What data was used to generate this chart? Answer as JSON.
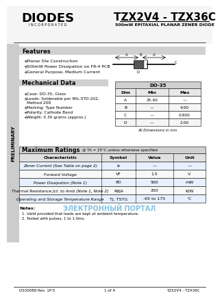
{
  "bg_color": "#f0f0f0",
  "page_bg": "#ffffff",
  "title": "TZX2V4 - TZX36C",
  "subtitle": "500mW EPITAXIAL PLANAR ZENER DIODE",
  "logo_text": "DIODES",
  "logo_sub": "INCORPORATED",
  "preliminary_text": "PRELIMINARY",
  "features_title": "Features",
  "features": [
    "Planar Die Construction",
    "500mW Power Dissipation on FR-4 PCB",
    "General Purpose, Medium Current"
  ],
  "mech_title": "Mechanical Data",
  "mech_items": [
    "Case: DO-35, Glass",
    "Leads: Solderable per MIL-STD-202,\n    Method 208",
    "Marking: Type Number",
    "Polarity: Cathode Band",
    "Weight: 0.30 grams (approx.)"
  ],
  "table_header": "DO-35",
  "table_cols": [
    "Dim",
    "Min",
    "Max"
  ],
  "table_rows": [
    [
      "A",
      "25.40",
      "—"
    ],
    [
      "B",
      "—",
      "4.00"
    ],
    [
      "C",
      "—",
      "0.800"
    ],
    [
      "D",
      "—",
      "2.00"
    ]
  ],
  "table_note": "All Dimensions in mm",
  "max_ratings_title": "Maximum Ratings",
  "max_ratings_note": "@ TA = 25°C unless otherwise specified",
  "ratings_cols": [
    "Characteristic",
    "Symbol",
    "Value",
    "Unit"
  ],
  "ratings_rows": [
    [
      "Zener Current (See Table on page 2)",
      "Iz",
      "—",
      "—"
    ],
    [
      "Forward Voltage",
      "VF",
      "1.5",
      "V"
    ],
    [
      "Power Dissipation (Note 1)",
      "PD",
      "500",
      "mW"
    ],
    [
      "Thermal Resistance Jct. to Amb (Note 1, Note 2)",
      "RθJA",
      "250",
      "K/W"
    ],
    [
      "Operating and Storage Temperature Range",
      "TJ, TSTG",
      "-65 to 175",
      "°C"
    ]
  ],
  "notes": [
    "1. Valid provided that leads are kept at ambient temperature.",
    "2. Tested with pulses, 1 to 1.0ms."
  ],
  "footer_left": "DS30089 Rev. 1P-5",
  "footer_center": "1 of 4",
  "footer_right": "TZX2V4 - TZX36C",
  "watermark": "ЭЛЕКТРОННЫЙ ПОРТАЛ"
}
